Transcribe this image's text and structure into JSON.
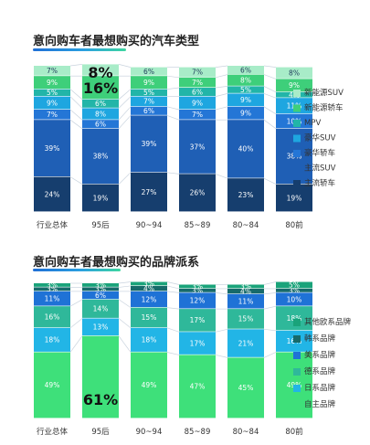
{
  "chart_data": [
    {
      "type": "bar",
      "stacked": true,
      "title": "意向购车者最想购买的汽车类型",
      "categories": [
        "行业总体",
        "95后",
        "90~94",
        "85~89",
        "80~84",
        "80前"
      ],
      "series": [
        {
          "name": "主流轿车",
          "color": "#163e6e",
          "values": [
            24,
            19,
            27,
            26,
            23,
            19
          ]
        },
        {
          "name": "主流SUV",
          "color": "#1f5fb5",
          "values": [
            39,
            38,
            39,
            37,
            40,
            38
          ]
        },
        {
          "name": "豪华轿车",
          "color": "#2476d6",
          "values": [
            7,
            6,
            6,
            7,
            9,
            10
          ]
        },
        {
          "name": "豪华SUV",
          "color": "#1ea6e0",
          "values": [
            9,
            8,
            7,
            9,
            9,
            11
          ]
        },
        {
          "name": "MPV",
          "color": "#22b5a8",
          "values": [
            5,
            6,
            5,
            6,
            5,
            4
          ]
        },
        {
          "name": "新能源轿车",
          "color": "#3ecf7a",
          "values": [
            9,
            16,
            9,
            7,
            8,
            9
          ]
        },
        {
          "name": "新能源SUV",
          "color": "#a8ecc8",
          "values": [
            7,
            8,
            6,
            7,
            6,
            8
          ]
        }
      ],
      "highlights": [
        {
          "category": "95后",
          "series": "新能源SUV",
          "label": "8%"
        },
        {
          "category": "95后",
          "series": "新能源轿车",
          "label": "16%"
        }
      ]
    },
    {
      "type": "bar",
      "stacked": true,
      "title": "意向购车者最想购买的品牌派系",
      "categories": [
        "行业总体",
        "95后",
        "90~94",
        "85~89",
        "80~84",
        "80前"
      ],
      "series": [
        {
          "name": "自主品牌",
          "color": "#3ee07a",
          "values": [
            49,
            61,
            49,
            47,
            45,
            49
          ]
        },
        {
          "name": "日系品牌",
          "color": "#22b5e6",
          "values": [
            18,
            13,
            18,
            17,
            21,
            16
          ]
        },
        {
          "name": "德系品牌",
          "color": "#2fb89a",
          "values": [
            16,
            14,
            15,
            17,
            15,
            18
          ]
        },
        {
          "name": "美系品牌",
          "color": "#1f72d6",
          "values": [
            11,
            6,
            12,
            12,
            11,
            10
          ]
        },
        {
          "name": "韩系品牌",
          "color": "#176a6a",
          "values": [
            3,
            3,
            4,
            3,
            4,
            3
          ]
        },
        {
          "name": "其他欧系品牌",
          "color": "#1aa37a",
          "values": [
            3,
            3,
            3,
            3,
            3,
            5
          ]
        }
      ],
      "highlights": [
        {
          "category": "95后",
          "series": "自主品牌",
          "label": "61%"
        }
      ]
    }
  ]
}
